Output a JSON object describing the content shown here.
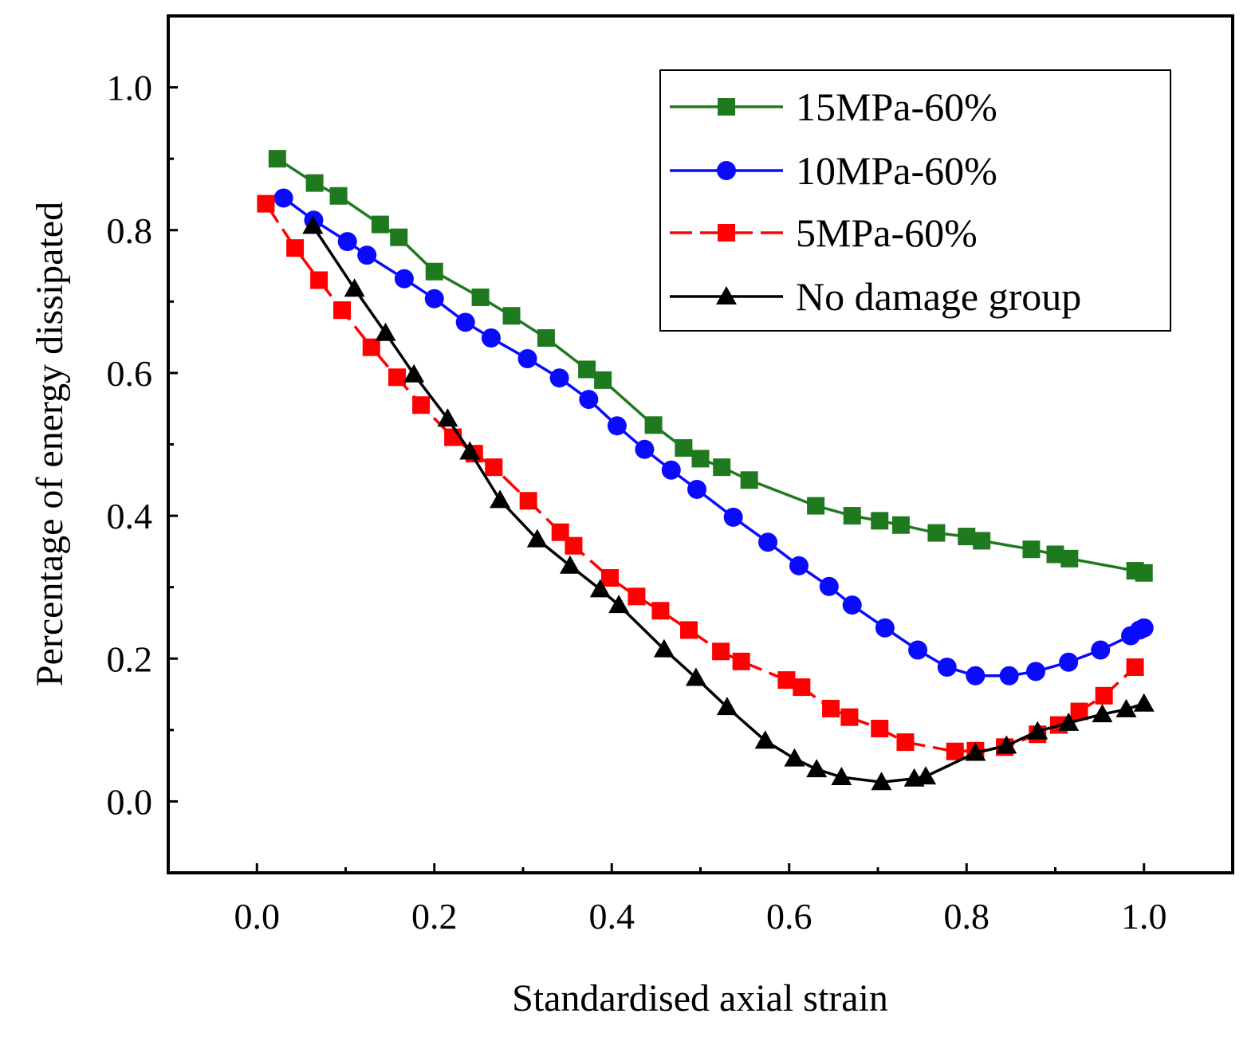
{
  "chart_data": {
    "type": "line",
    "xlabel": "Standardised axial strain",
    "ylabel": "Percentage of energy dissipated",
    "xlim": [
      -0.1,
      1.1
    ],
    "ylim": [
      -0.1,
      1.1
    ],
    "xticks": [
      "0.0",
      "0.2",
      "0.4",
      "0.6",
      "0.8",
      "1.0"
    ],
    "yticks": [
      "0.0",
      "0.2",
      "0.4",
      "0.6",
      "0.8",
      "1.0"
    ],
    "legend_position": "top-right",
    "grid": false,
    "series": [
      {
        "name": "15MPa-60%",
        "color": "#1f7a1f",
        "marker": "square",
        "dash": "solid",
        "x": [
          0.023,
          0.065,
          0.092,
          0.139,
          0.16,
          0.2,
          0.252,
          0.287,
          0.326,
          0.372,
          0.39,
          0.447,
          0.481,
          0.5,
          0.524,
          0.555,
          0.63,
          0.671,
          0.702,
          0.726,
          0.766,
          0.8,
          0.817,
          0.873,
          0.9,
          0.916,
          0.99,
          1.0
        ],
        "y": [
          0.9,
          0.866,
          0.848,
          0.808,
          0.79,
          0.742,
          0.706,
          0.68,
          0.649,
          0.605,
          0.59,
          0.527,
          0.495,
          0.48,
          0.468,
          0.45,
          0.414,
          0.4,
          0.393,
          0.387,
          0.376,
          0.371,
          0.365,
          0.353,
          0.346,
          0.34,
          0.323,
          0.32
        ]
      },
      {
        "name": "10MPa-60%",
        "color": "#0a0aff",
        "marker": "circle",
        "dash": "solid",
        "x": [
          0.03,
          0.064,
          0.102,
          0.124,
          0.166,
          0.2,
          0.235,
          0.264,
          0.305,
          0.341,
          0.374,
          0.406,
          0.437,
          0.467,
          0.496,
          0.537,
          0.576,
          0.611,
          0.645,
          0.671,
          0.708,
          0.745,
          0.778,
          0.81,
          0.848,
          0.878,
          0.915,
          0.951,
          0.985,
          0.995,
          1.0
        ],
        "y": [
          0.845,
          0.814,
          0.784,
          0.765,
          0.732,
          0.704,
          0.671,
          0.649,
          0.62,
          0.593,
          0.563,
          0.526,
          0.493,
          0.464,
          0.437,
          0.398,
          0.363,
          0.33,
          0.301,
          0.275,
          0.243,
          0.212,
          0.188,
          0.176,
          0.176,
          0.182,
          0.195,
          0.212,
          0.232,
          0.24,
          0.243
        ]
      },
      {
        "name": "5MPa-60%",
        "color": "#ff0000",
        "marker": "square",
        "dash": "dashed",
        "x": [
          0.01,
          0.043,
          0.07,
          0.096,
          0.129,
          0.158,
          0.185,
          0.221,
          0.245,
          0.267,
          0.306,
          0.342,
          0.357,
          0.398,
          0.428,
          0.455,
          0.487,
          0.523,
          0.546,
          0.597,
          0.614,
          0.647,
          0.668,
          0.702,
          0.731,
          0.787,
          0.81,
          0.843,
          0.88,
          0.904,
          0.927,
          0.955,
          0.99
        ],
        "y": [
          0.837,
          0.775,
          0.73,
          0.688,
          0.636,
          0.594,
          0.555,
          0.51,
          0.487,
          0.468,
          0.421,
          0.377,
          0.358,
          0.313,
          0.287,
          0.267,
          0.24,
          0.21,
          0.196,
          0.17,
          0.16,
          0.13,
          0.118,
          0.102,
          0.083,
          0.07,
          0.071,
          0.076,
          0.094,
          0.107,
          0.126,
          0.148,
          0.188
        ]
      },
      {
        "name": "No damage group",
        "color": "#000000",
        "marker": "triangle",
        "dash": "solid",
        "x": [
          0.063,
          0.11,
          0.145,
          0.177,
          0.215,
          0.24,
          0.274,
          0.316,
          0.353,
          0.387,
          0.408,
          0.459,
          0.495,
          0.53,
          0.573,
          0.606,
          0.631,
          0.659,
          0.704,
          0.741,
          0.754,
          0.81,
          0.845,
          0.88,
          0.915,
          0.953,
          0.98,
          1.0
        ],
        "y": [
          0.806,
          0.718,
          0.656,
          0.598,
          0.536,
          0.49,
          0.422,
          0.367,
          0.33,
          0.297,
          0.275,
          0.213,
          0.173,
          0.132,
          0.085,
          0.06,
          0.045,
          0.034,
          0.027,
          0.032,
          0.035,
          0.068,
          0.078,
          0.098,
          0.11,
          0.122,
          0.129,
          0.137
        ]
      }
    ]
  }
}
